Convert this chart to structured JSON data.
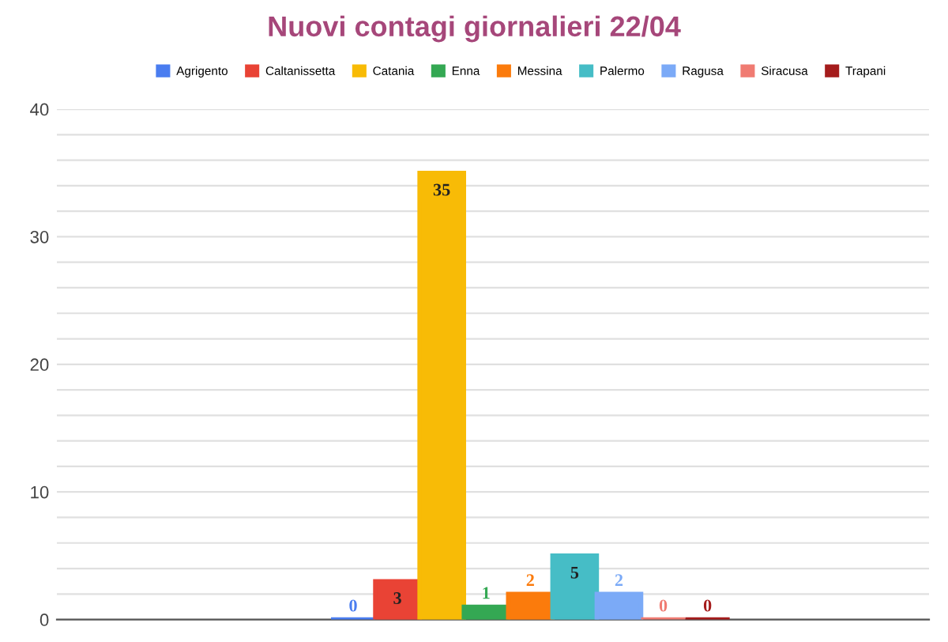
{
  "chart_data": {
    "type": "bar",
    "title": "Nuovi contagi giornalieri 22/04",
    "categories": [
      null
    ],
    "series": [
      {
        "name": "Agrigento",
        "color": "#4a7df0",
        "values": [
          0
        ]
      },
      {
        "name": "Caltanissetta",
        "color": "#e94335",
        "values": [
          3
        ]
      },
      {
        "name": "Catania",
        "color": "#f8bb06",
        "values": [
          35
        ]
      },
      {
        "name": "Enna",
        "color": "#34a853",
        "values": [
          1
        ]
      },
      {
        "name": "Messina",
        "color": "#fb7b0c",
        "values": [
          2
        ]
      },
      {
        "name": "Palermo",
        "color": "#46bdc6",
        "values": [
          5
        ]
      },
      {
        "name": "Ragusa",
        "color": "#7baaf7",
        "values": [
          2
        ]
      },
      {
        "name": "Siracusa",
        "color": "#f07b72",
        "values": [
          0
        ]
      },
      {
        "name": "Trapani",
        "color": "#a51c1c",
        "values": [
          0
        ]
      }
    ],
    "ylim": [
      0,
      40
    ],
    "yticks": [
      0,
      {
        "value": 2,
        "label": null
      },
      {
        "value": 4,
        "label": null
      },
      {
        "value": 6,
        "label": null
      },
      {
        "value": 8,
        "label": null
      },
      10,
      {
        "value": 12,
        "label": null
      },
      {
        "value": 14,
        "label": null
      },
      {
        "value": 16,
        "label": null
      },
      {
        "value": 18,
        "label": null
      },
      20,
      {
        "value": 22,
        "label": null
      },
      {
        "value": 24,
        "label": null
      },
      {
        "value": 26,
        "label": null
      },
      {
        "value": 28,
        "label": null
      },
      30,
      {
        "value": 32,
        "label": null
      },
      {
        "value": 34,
        "label": null
      },
      {
        "value": 36,
        "label": null
      },
      {
        "value": 38,
        "label": null
      },
      40
    ],
    "grid": "y",
    "legend": "top",
    "data_labels": true
  }
}
